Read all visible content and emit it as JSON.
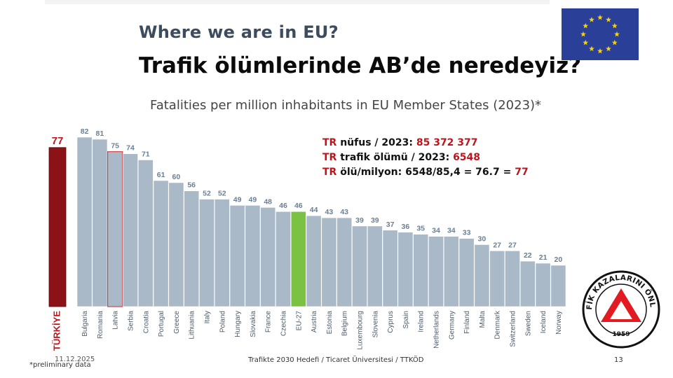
{
  "header": {
    "title_en": "Where we are in EU?",
    "title_tr": "Trafik ölümlerinde AB’de neredeyiz?"
  },
  "chart_data": {
    "type": "bar",
    "title": "Fatalities per million inhabitants in EU Member States (2023)*",
    "categories": [
      "TÜRKİYE",
      "Bulgaria",
      "Romania",
      "Latvia",
      "Serbia",
      "Croatia",
      "Portugal",
      "Greece",
      "Lithuania",
      "Italy",
      "Poland",
      "Hungary",
      "Slovakia",
      "France",
      "Czechia",
      "EU-27",
      "Austria",
      "Estonia",
      "Belgium",
      "Luxembourg",
      "Slovenia",
      "Cyprus",
      "Spain",
      "Ireland",
      "Netherlands",
      "Germany",
      "Finland",
      "Malta",
      "Denmark",
      "Switzerland",
      "Sweden",
      "Iceland",
      "Norway"
    ],
    "values": [
      77,
      82,
      81,
      75,
      74,
      71,
      61,
      60,
      56,
      52,
      52,
      49,
      49,
      48,
      46,
      46,
      44,
      43,
      43,
      39,
      39,
      37,
      36,
      35,
      34,
      34,
      33,
      30,
      27,
      27,
      22,
      21,
      20
    ],
    "ylim": [
      0,
      90
    ],
    "grid": false,
    "legend": "none",
    "colors": {
      "default": "#a9b9c8",
      "turkiye": "#8b1216",
      "turkiye_label": "#c0141c",
      "eu27": "#7cc242",
      "latvia_outline": "#d24646",
      "value_label": "#6b7f93",
      "category_label": "#4d5d6c"
    }
  },
  "tr_info": {
    "line1_prefix": "TR",
    "line1_text": " nüfus / 2023: ",
    "line1_value": "85 372 377",
    "line2_prefix": "TR",
    "line2_text": " trafik ölümü / 2023:  ",
    "line2_value": "6548",
    "line3_prefix": "TR",
    "line3_text": " ölü/milyon: 6548/85,4 = 76.7 = ",
    "line3_value": "77"
  },
  "logo": {
    "ring_text": "TÜRKİYE TRAFİK KAZALARINI ÖNLEME DERNEĞİ",
    "year": "1959"
  },
  "footer": {
    "date": "11.12.2025",
    "note": "*preliminary data",
    "center": "Trafikte 2030 Hedefi / Ticaret Üniversitesi / TTKÖD",
    "page": "13"
  },
  "icons": {
    "flag": "eu-flag-icon",
    "logo": "ttkod-logo"
  }
}
